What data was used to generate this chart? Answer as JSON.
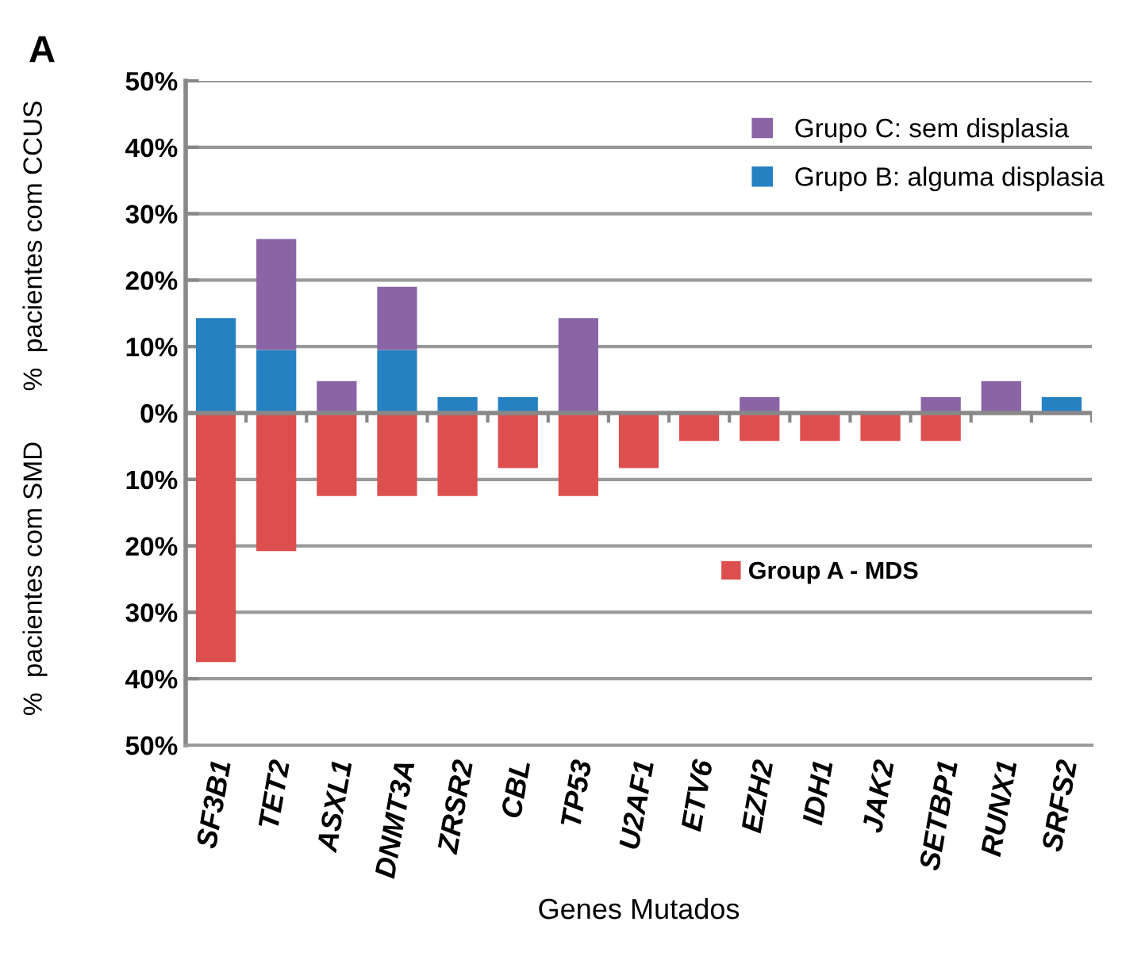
{
  "chart_data": {
    "type": "bar",
    "stacked": true,
    "categories": [
      "SF3B1",
      "TET2",
      "ASXL1",
      "DNMT3A",
      "ZRSR2",
      "CBL",
      "TP53",
      "U2AF1",
      "ETV6",
      "EZH2",
      "IDH1",
      "JAK2",
      "SETBP1",
      "RUNX1",
      "SRFS2"
    ],
    "series": [
      {
        "name": "Group A - MDS",
        "color": "#dd4f4f",
        "values": [
          -37.5,
          -20.8,
          -12.5,
          -12.5,
          -12.5,
          -8.3,
          -12.5,
          -8.3,
          -4.2,
          -4.2,
          -4.2,
          -4.2,
          -4.2,
          0,
          0
        ]
      },
      {
        "name": "Grupo B: alguma displasia",
        "color": "#2681c2",
        "values": [
          14.3,
          9.5,
          0,
          9.5,
          2.4,
          2.4,
          0,
          0,
          0,
          0,
          0,
          0,
          0,
          0,
          2.4
        ]
      },
      {
        "name": "Grupo C: sem displasia",
        "color": "#8b64a5",
        "values": [
          0,
          16.7,
          4.8,
          9.5,
          0,
          0,
          14.3,
          0,
          0,
          2.4,
          0,
          0,
          2.4,
          4.8,
          0
        ]
      }
    ],
    "ylim": [
      -50,
      50
    ],
    "yticks": [
      {
        "value": -50,
        "label": "50%"
      },
      {
        "value": -40,
        "label": "40%"
      },
      {
        "value": -30,
        "label": "30%"
      },
      {
        "value": -20,
        "label": "20%"
      },
      {
        "value": -10,
        "label": "10%"
      },
      {
        "value": 0,
        "label": "0%"
      },
      {
        "value": 10,
        "label": "10%"
      },
      {
        "value": 20,
        "label": "20%"
      },
      {
        "value": 30,
        "label": "30%"
      },
      {
        "value": 40,
        "label": "40%"
      },
      {
        "value": 50,
        "label": "50%"
      }
    ],
    "ylabel": "%  pacientes com CCUS",
    "xlabel": "Genes Mutados",
    "annotations": [
      "A",
      "%  pacientes com SMD"
    ],
    "grid": "y",
    "legend": "right"
  }
}
